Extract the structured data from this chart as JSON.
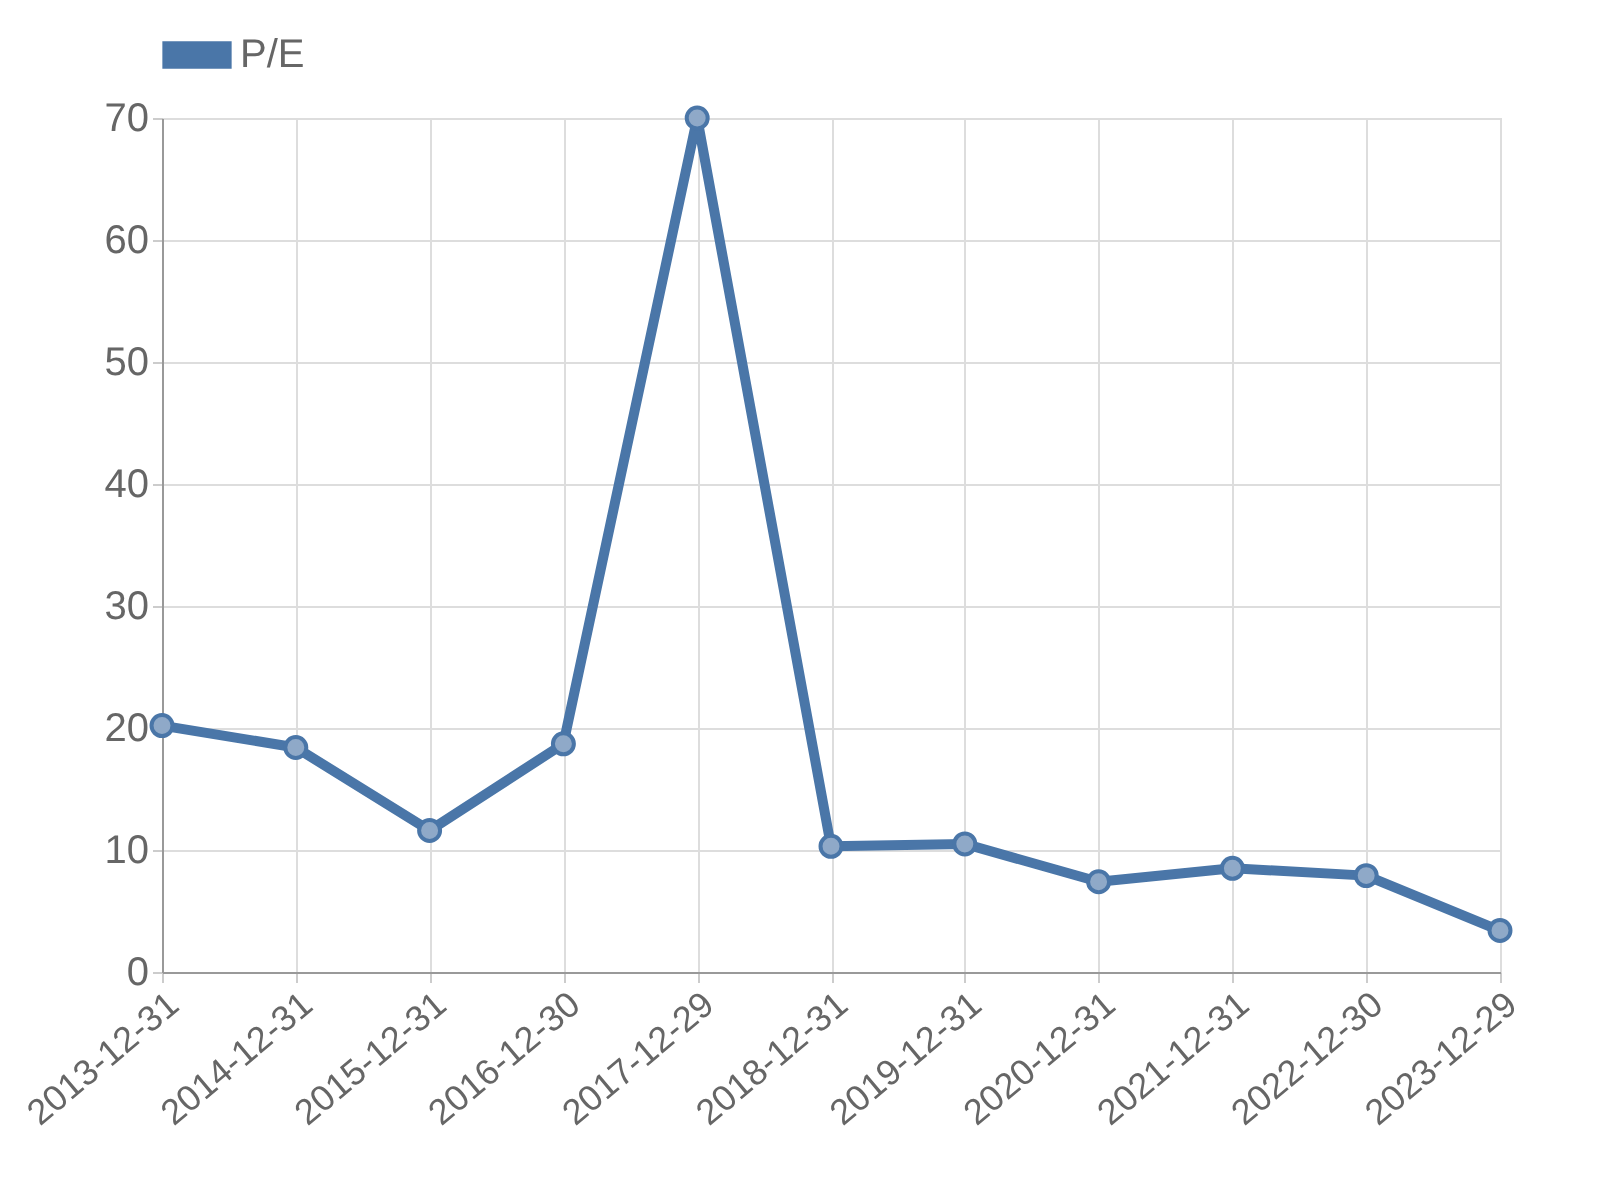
{
  "chart_data": {
    "type": "line",
    "categories": [
      "2013-12-31",
      "2014-12-31",
      "2015-12-31",
      "2016-12-30",
      "2017-12-29",
      "2018-12-31",
      "2019-12-31",
      "2020-12-31",
      "2021-12-31",
      "2022-12-30",
      "2023-12-29"
    ],
    "series": [
      {
        "name": "P/E",
        "color": "#4a76a8",
        "values": [
          20.2,
          18.4,
          11.6,
          18.7,
          70,
          10.3,
          10.5,
          7.4,
          8.5,
          7.9,
          3.4
        ]
      }
    ],
    "ylim": [
      0,
      70
    ],
    "yticks": [
      0,
      10,
      20,
      30,
      40,
      50,
      60,
      70
    ],
    "grid": true,
    "legend": "top",
    "marker": "circle",
    "line_style": "solid"
  }
}
